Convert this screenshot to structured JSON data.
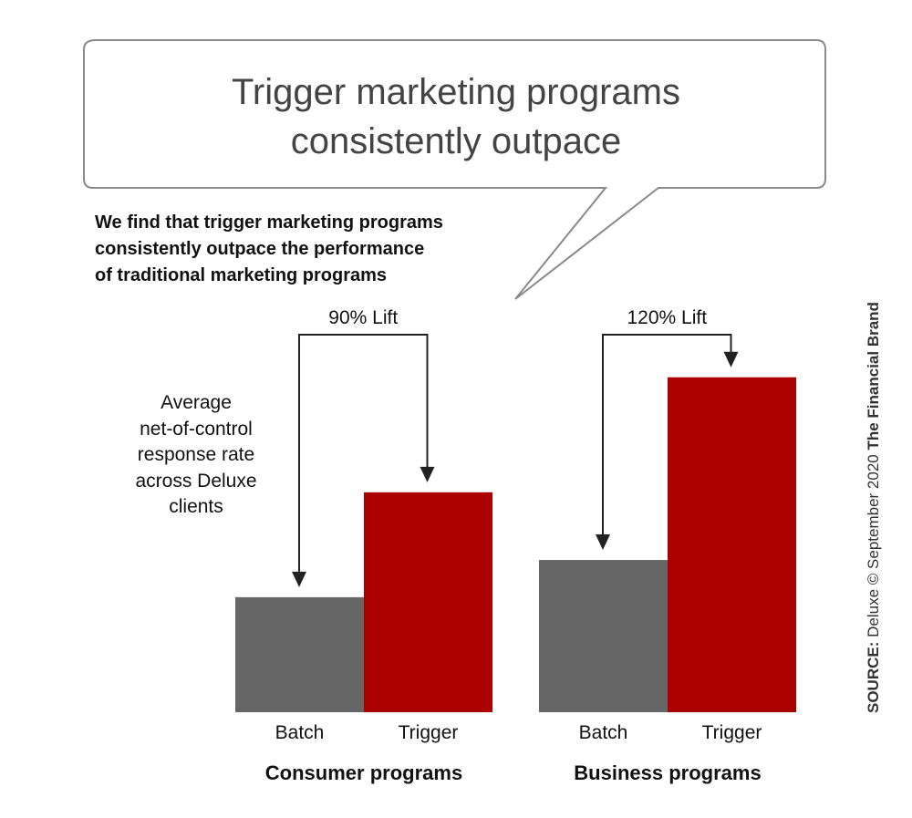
{
  "headline": {
    "line1": "Trigger marketing programs",
    "line2": "consistently outpace"
  },
  "subtitle": {
    "line1": "We find that trigger marketing programs",
    "line2": "consistently outpace the performance",
    "line3": "of traditional marketing programs"
  },
  "ylabel": {
    "line1": "Average",
    "line2": "net-of-control",
    "line3": "response rate",
    "line4": "across Deluxe",
    "line5": "clients"
  },
  "source": {
    "label": "SOURCE:",
    "text": "Deluxe © September 2020",
    "brand": "The Financial Brand"
  },
  "colors": {
    "batch": "#666666",
    "trigger": "#aa0000",
    "arrow": "#222222",
    "bubble_stroke": "#8a8a8a"
  },
  "chart_data": {
    "type": "bar",
    "title": "",
    "ylabel": "Average net-of-control response rate across Deluxe clients",
    "ylim": [
      0,
      100
    ],
    "groups": [
      {
        "name": "Consumer programs",
        "lift_label": "90% Lift",
        "bars": [
          {
            "category": "Batch",
            "value": 34
          },
          {
            "category": "Trigger",
            "value": 65
          }
        ]
      },
      {
        "name": "Business programs",
        "lift_label": "120% Lift",
        "bars": [
          {
            "category": "Batch",
            "value": 45
          },
          {
            "category": "Trigger",
            "value": 99
          }
        ]
      }
    ]
  }
}
